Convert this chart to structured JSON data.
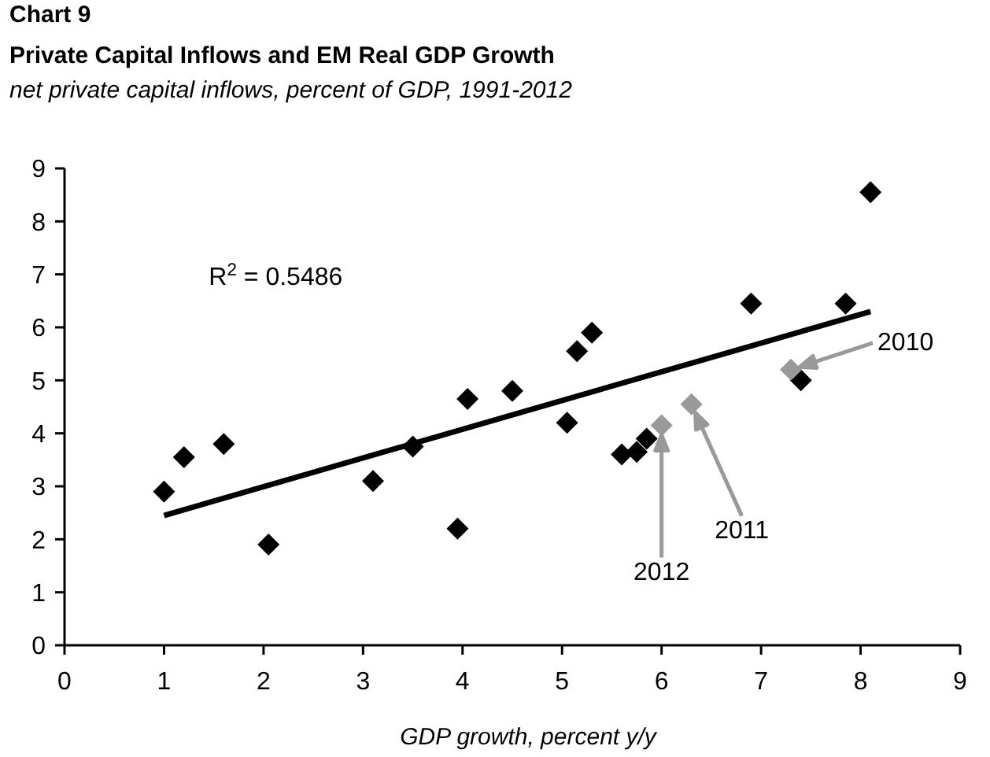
{
  "chart_data": {
    "type": "scatter",
    "title": "Private Capital Inflows and EM Real GDP Growth",
    "subtitle": "net private capital inflows, percent of GDP, 1991-2012",
    "xlabel": "GDP growth, percent y/y",
    "marker": "diamond",
    "grid": false,
    "xlim": [
      0,
      9
    ],
    "xticks": [
      0,
      1,
      2,
      3,
      4,
      5,
      6,
      7,
      8,
      9
    ],
    "ylim": [
      0,
      9
    ],
    "yticks": [
      0,
      1,
      2,
      3,
      4,
      5,
      6,
      7,
      8,
      9
    ],
    "series": [
      {
        "color": "#000000",
        "x": [
          1.0,
          1.2,
          1.6,
          2.05,
          3.1,
          3.5,
          3.95,
          4.05,
          4.5,
          5.05,
          5.15,
          5.3,
          5.6,
          5.75,
          5.85,
          6.9,
          7.4,
          7.85,
          8.1
        ],
        "values": [
          2.9,
          3.55,
          3.8,
          1.9,
          3.1,
          3.75,
          2.2,
          4.65,
          4.8,
          4.2,
          5.55,
          5.9,
          3.6,
          3.65,
          3.9,
          6.45,
          5.0,
          6.45,
          8.55
        ]
      },
      {
        "color": "#999999",
        "x": [
          7.3,
          6.3,
          6.0
        ],
        "values": [
          5.2,
          4.55,
          4.15
        ]
      },
      {
        "type": "line",
        "color": "#000000",
        "marker": "none",
        "x": [
          1.0,
          8.1
        ],
        "values": [
          2.45,
          6.3
        ]
      }
    ],
    "annotations": [
      "Chart 9",
      "R$^{2}$ = 0.5486",
      "2010",
      "2011",
      "2012"
    ]
  }
}
